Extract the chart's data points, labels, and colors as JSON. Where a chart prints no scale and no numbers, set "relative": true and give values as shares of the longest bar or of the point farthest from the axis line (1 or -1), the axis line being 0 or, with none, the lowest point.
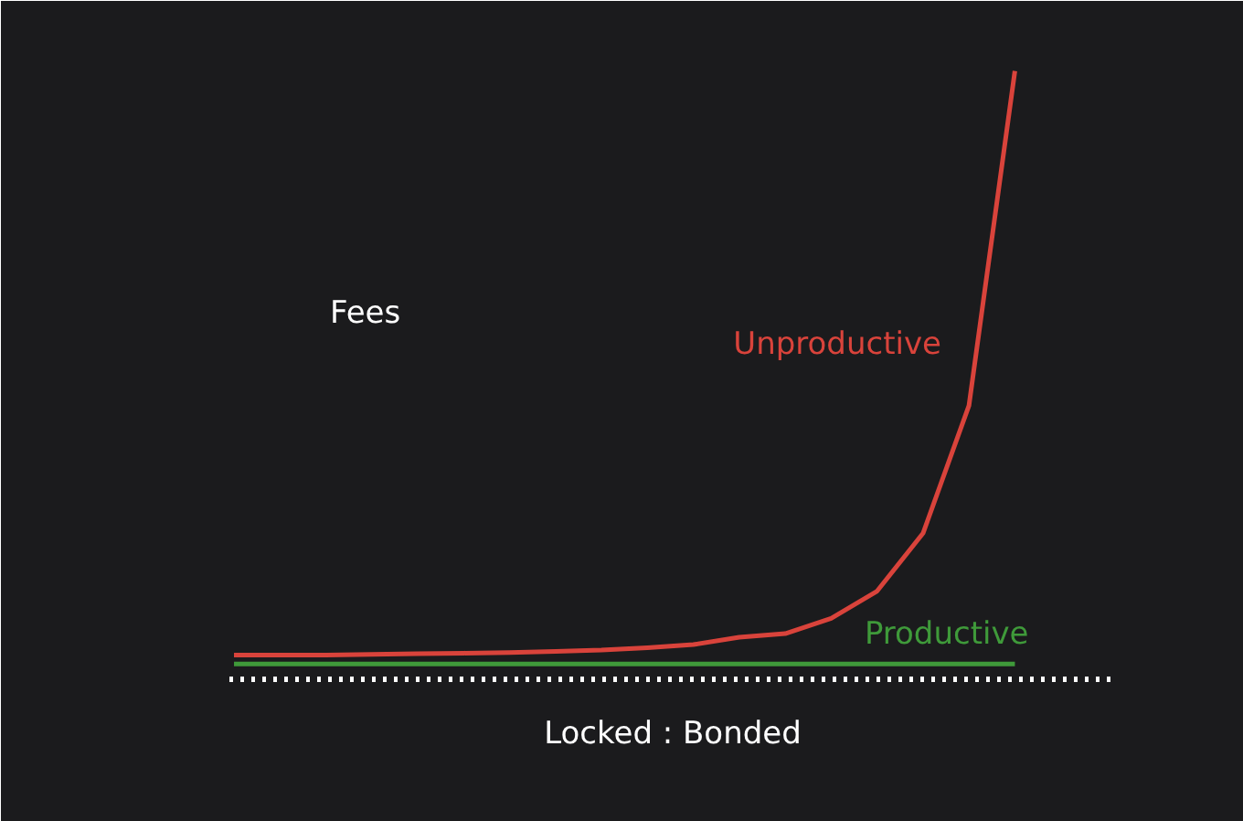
{
  "chart_data": {
    "type": "line",
    "relative": true,
    "xlabel": "Locked : Bonded",
    "ylabel": "Fees",
    "categories": [
      null,
      null,
      null,
      null,
      null,
      null,
      null,
      null,
      null,
      null,
      null,
      null,
      null,
      null,
      null,
      null,
      null,
      null
    ],
    "series": [
      {
        "name": "Unproductive",
        "color": "#d9433b",
        "values": [
          0.04,
          0.04,
          0.04,
          0.041,
          0.042,
          0.043,
          0.044,
          0.046,
          0.048,
          0.052,
          0.057,
          0.069,
          0.075,
          0.1,
          0.145,
          0.24,
          0.45,
          1.0
        ]
      },
      {
        "name": "Productive",
        "color": "#3f9a3a",
        "values": [
          0.025,
          0.025,
          0.025,
          0.025,
          0.025,
          0.025,
          0.025,
          0.025,
          0.025,
          0.025,
          0.025,
          0.025,
          0.025,
          0.025,
          0.025,
          0.025,
          0.025,
          0.025
        ]
      }
    ]
  }
}
